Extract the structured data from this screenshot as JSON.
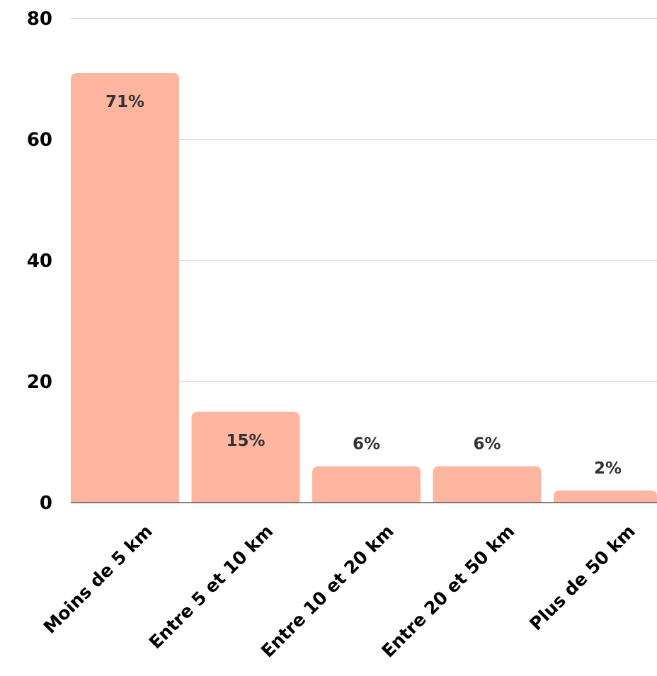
{
  "chart_data": {
    "type": "bar",
    "categories": [
      "Moins de 5 km",
      "Entre 5 et 10 km",
      "Entre 10 et 20 km",
      "Entre 20 et 50 km",
      "Plus de 50 km"
    ],
    "values": [
      71,
      15,
      6,
      6,
      2
    ],
    "data_labels": [
      "71%",
      "15%",
      "6%",
      "6%",
      "2%"
    ],
    "title": "",
    "xlabel": "",
    "ylabel": "",
    "ylim": [
      0,
      80
    ],
    "yticks": [
      0,
      20,
      40,
      60,
      80
    ],
    "ytick_labels": [
      "0",
      "20",
      "40",
      "60",
      "80"
    ],
    "grid": true,
    "legend": "none",
    "bar_color": "#FFB5A0",
    "label_color": "#333333"
  }
}
